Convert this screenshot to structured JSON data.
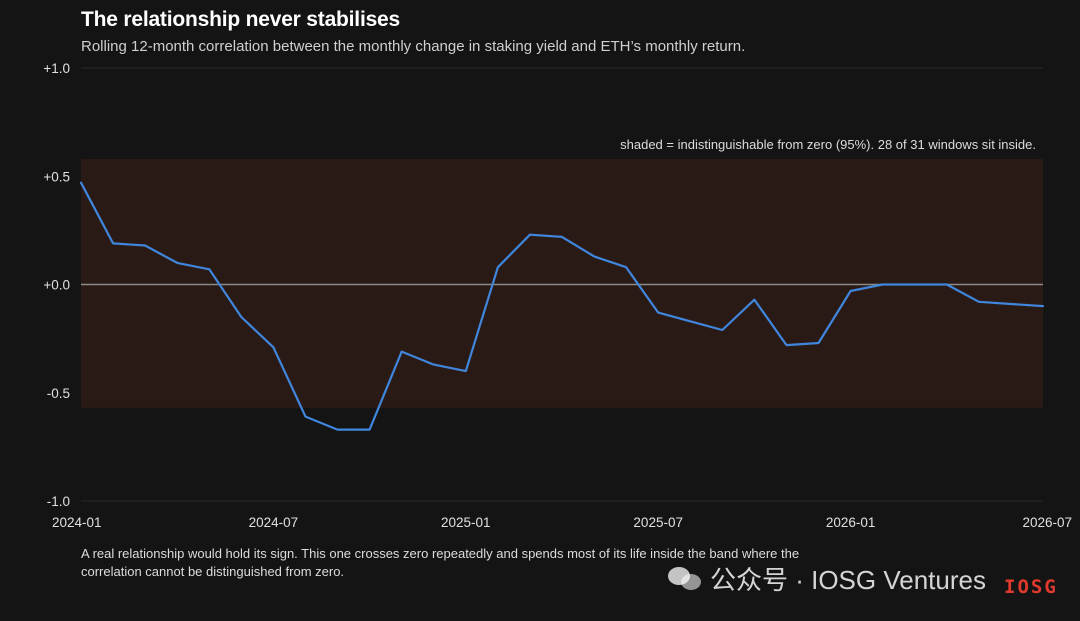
{
  "title": "The relationship never stabilises",
  "subtitle": "Rolling 12-month correlation between the monthly change in staking yield and ETH’s monthly return.",
  "band_note": "shaded = indistinguishable from zero (95%). 28 of 31 windows sit inside.",
  "footnote": "A real relationship would hold its sign. This one crosses zero repeatedly and spends most of its life inside the band where the correlation cannot be distinguished from zero.",
  "watermark": {
    "text": "公众号 · IOSG Ventures",
    "icon": "wechat-icon",
    "logo": "IOSG"
  },
  "colors": {
    "background": "#141414",
    "line": "#3f86dc",
    "band": "#2c1b16",
    "zero_line": "#8a8a8a",
    "grid": "#2a2a2a"
  },
  "chart_data": {
    "type": "line",
    "x_ticks": [
      "2024-01",
      "2024-07",
      "2025-01",
      "2025-07",
      "2026-01",
      "2026-07"
    ],
    "y_ticks": [
      "+1.0",
      "+0.5",
      "+0.0",
      "-0.5",
      "-1.0"
    ],
    "y_tick_values": [
      1.0,
      0.5,
      0.0,
      -0.5,
      -1.0
    ],
    "ylim": [
      -1.0,
      1.0
    ],
    "xlim": [
      "2024-01",
      "2026-07"
    ],
    "band": [
      -0.57,
      0.58
    ],
    "grid": true,
    "series": [
      {
        "x": [
          "2024-01",
          "2024-02",
          "2024-03",
          "2024-04",
          "2024-05",
          "2024-06",
          "2024-07",
          "2024-08",
          "2024-09",
          "2024-10",
          "2024-11",
          "2024-12",
          "2025-01",
          "2025-02",
          "2025-03",
          "2025-04",
          "2025-05",
          "2025-06",
          "2025-07",
          "2025-08",
          "2025-09",
          "2025-10",
          "2025-11",
          "2025-12",
          "2026-01",
          "2026-02",
          "2026-03",
          "2026-04",
          "2026-05",
          "2026-06",
          "2026-07"
        ],
        "values": [
          0.47,
          0.19,
          0.18,
          0.1,
          0.07,
          -0.15,
          -0.29,
          -0.61,
          -0.67,
          -0.67,
          -0.31,
          -0.37,
          -0.4,
          0.08,
          0.23,
          0.22,
          0.13,
          0.08,
          -0.13,
          -0.17,
          -0.21,
          -0.07,
          -0.28,
          -0.27,
          -0.03,
          0.0,
          0.0,
          0.0,
          -0.08,
          -0.09,
          -0.1
        ]
      }
    ]
  }
}
